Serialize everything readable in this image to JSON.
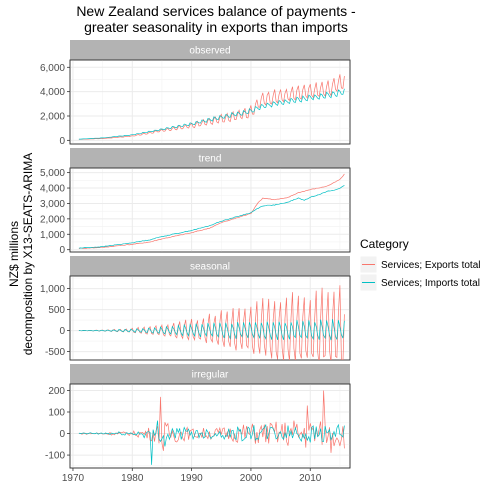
{
  "chart_data": {
    "type": "line",
    "title": "New Zealand services balance of payments -\ngreater seasonality in exports than imports",
    "title_lines": [
      "New Zealand services balance of payments -",
      "greater seasonality in exports than imports"
    ],
    "xlabel": "",
    "ylabel": "NZ$ millions\ndecomposition by X13-SEATS-ARIMA",
    "ylabel_lines": [
      "NZ$ millions",
      "decomposition by X13-SEATS-ARIMA"
    ],
    "xlim": [
      1969.5,
      2016.7
    ],
    "x_ticks": [
      1970,
      1980,
      1990,
      2000,
      2010
    ],
    "x_tick_labels": [
      "1970",
      "1980",
      "1990",
      "2000",
      "2010"
    ],
    "grid": true,
    "legend": {
      "title": "Category",
      "placement": "right",
      "entries": [
        {
          "label": "Services; Exports total",
          "color": "#F8766D"
        },
        {
          "label": "Services; Imports total",
          "color": "#00BFC4"
        }
      ]
    },
    "colors": {
      "exports": "#F8766D",
      "imports": "#00BFC4",
      "strip": "#b3b3b3",
      "grid": "#ebebeb"
    },
    "panels": [
      {
        "name": "observed",
        "ylim": [
          -300,
          6600
        ],
        "y_ticks": [
          0,
          2000,
          4000,
          6000
        ],
        "y_tick_labels": [
          "0",
          "2,000",
          "4,000",
          "6,000"
        ],
        "series": [
          {
            "name": "Services; Exports total",
            "x": [
              1971,
              1975,
              1980,
              1985,
              1990,
              1995,
              2000,
              2002,
              2005,
              2010,
              2013,
              2015,
              2015.75
            ],
            "values": [
              80,
              150,
              350,
              800,
              1200,
              1750,
              2300,
              3400,
              3600,
              4000,
              4200,
              4700,
              5000
            ],
            "seasonal_amp": [
              0,
              10,
              30,
              100,
              200,
              350,
              500,
              550,
              580,
              600,
              650,
              700,
              700
            ]
          },
          {
            "name": "Services; Imports total",
            "x": [
              1971,
              1975,
              1980,
              1985,
              1990,
              1995,
              2000,
              2002,
              2005,
              2010,
              2013,
              2015,
              2015.75
            ],
            "values": [
              100,
              200,
              450,
              900,
              1350,
              1900,
              2400,
              2800,
              3100,
              3500,
              3700,
              3900,
              4000
            ],
            "seasonal_amp": [
              0,
              10,
              30,
              80,
              150,
              200,
              250,
              250,
              260,
              280,
              300,
              300,
              300
            ]
          }
        ]
      },
      {
        "name": "trend",
        "ylim": [
          -150,
          5300
        ],
        "y_ticks": [
          0,
          1000,
          2000,
          3000,
          4000,
          5000
        ],
        "y_tick_labels": [
          "0",
          "1,000",
          "2,000",
          "3,000",
          "4,000",
          "5,000"
        ],
        "series": [
          {
            "name": "Services; Exports total",
            "x": [
              1971,
              1975,
              1980,
              1983,
              1985,
              1990,
              1993,
              1995,
              2000,
              2001,
              2002,
              2004,
              2006,
              2008,
              2010,
              2012,
              2013,
              2014,
              2015,
              2015.75
            ],
            "values": [
              80,
              150,
              350,
              500,
              700,
              1100,
              1400,
              1750,
              2350,
              2950,
              3350,
              3250,
              3350,
              3700,
              3900,
              4050,
              4150,
              4350,
              4550,
              4900
            ]
          },
          {
            "name": "Services; Imports total",
            "x": [
              1971,
              1975,
              1980,
              1983,
              1985,
              1990,
              1993,
              1995,
              2000,
              2001,
              2002,
              2004,
              2006,
              2008,
              2009,
              2010,
              2012,
              2013,
              2014,
              2015,
              2015.75
            ],
            "values": [
              100,
              200,
              450,
              650,
              850,
              1250,
              1550,
              1850,
              2400,
              2650,
              2850,
              2900,
              3050,
              3350,
              3200,
              3400,
              3650,
              3800,
              3850,
              4000,
              4150
            ]
          }
        ]
      },
      {
        "name": "seasonal",
        "ylim": [
          -700,
          1300
        ],
        "y_ticks": [
          -500,
          0,
          500,
          1000
        ],
        "y_tick_labels": [
          "-500",
          "0",
          "500",
          "1,000"
        ],
        "series": [
          {
            "name": "Services; Exports total",
            "x": [
              1971,
              1975,
              1980,
              1985,
              1990,
              1995,
              2000,
              2005,
              2010,
              2015,
              2015.75
            ],
            "amplitude": [
              5,
              15,
              60,
              160,
              300,
              500,
              700,
              900,
              1000,
              1100,
              1150
            ]
          },
          {
            "name": "Services; Imports total",
            "x": [
              1971,
              1975,
              1980,
              1985,
              1990,
              1995,
              2000,
              2005,
              2010,
              2015,
              2015.75
            ],
            "amplitude": [
              5,
              15,
              50,
              120,
              200,
              260,
              300,
              320,
              330,
              350,
              350
            ]
          }
        ]
      },
      {
        "name": "irregular",
        "ylim": [
          -160,
          230
        ],
        "y_ticks": [
          -100,
          0,
          100,
          200
        ],
        "y_tick_labels": [
          "-100",
          "0",
          "100",
          "200"
        ],
        "series": [
          {
            "name": "Services; Exports total",
            "x": [
              1971,
              1980,
              1984,
              1985,
              1990,
              1995,
              2000,
              2005,
              2009,
              2010,
              2012,
              2015,
              2015.75
            ],
            "amplitude": [
              3,
              10,
              40,
              60,
              25,
              30,
              50,
              60,
              80,
              70,
              60,
              70,
              70
            ],
            "spikes": [
              [
                1984.75,
                170
              ],
              [
                1985.25,
                -80
              ],
              [
                2009.5,
                130
              ],
              [
                2012.25,
                200
              ],
              [
                2013.5,
                -90
              ]
            ]
          },
          {
            "name": "Services; Imports total",
            "x": [
              1971,
              1980,
              1984,
              1985,
              1990,
              1995,
              2000,
              2005,
              2010,
              2015,
              2015.75
            ],
            "amplitude": [
              3,
              10,
              30,
              40,
              25,
              25,
              40,
              40,
              45,
              40,
              40
            ],
            "spikes": [
              [
                1983.25,
                -145
              ],
              [
                1984.25,
                60
              ],
              [
                1985.5,
                -60
              ]
            ]
          }
        ]
      }
    ]
  }
}
